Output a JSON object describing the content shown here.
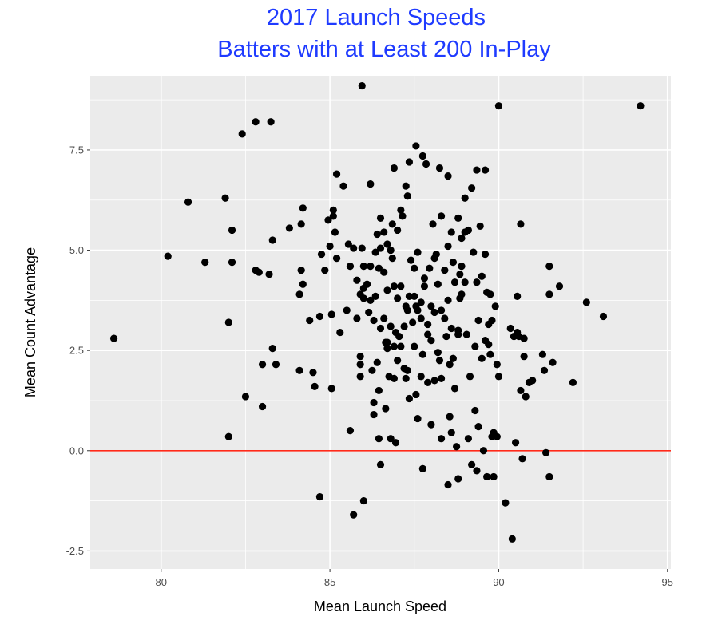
{
  "chart_data": {
    "type": "scatter",
    "title": [
      "2017 Launch Speeds",
      "Batters with at Least 200 In-Play"
    ],
    "xlabel": "Mean Launch Speed",
    "ylabel": "Mean Count Advantage",
    "xlim": [
      77.9,
      95.1
    ],
    "ylim": [
      -2.95,
      9.35
    ],
    "xticks": [
      80,
      85,
      90,
      95
    ],
    "yticks": [
      -2.5,
      0.0,
      2.5,
      5.0,
      7.5
    ],
    "xtick_labels": [
      "80",
      "85",
      "90",
      "95"
    ],
    "ytick_labels": [
      "-2.5",
      "0.0",
      "2.5",
      "5.0",
      "7.5"
    ],
    "grid": true,
    "hline": {
      "y": 0,
      "color": "#ff2a1a"
    },
    "colors": {
      "panel": "#ebebeb",
      "grid": "#ffffff",
      "points": "#000000",
      "title": "#1f3bff"
    },
    "points": [
      [
        78.6,
        2.8
      ],
      [
        80.2,
        4.85
      ],
      [
        80.8,
        6.2
      ],
      [
        81.3,
        4.7
      ],
      [
        81.9,
        6.3
      ],
      [
        82.0,
        3.2
      ],
      [
        82.0,
        0.35
      ],
      [
        82.1,
        5.5
      ],
      [
        82.1,
        4.7
      ],
      [
        82.4,
        7.9
      ],
      [
        82.5,
        1.35
      ],
      [
        82.8,
        4.5
      ],
      [
        82.8,
        8.2
      ],
      [
        82.9,
        4.45
      ],
      [
        83.0,
        2.15
      ],
      [
        83.0,
        1.1
      ],
      [
        83.2,
        4.4
      ],
      [
        83.25,
        8.2
      ],
      [
        83.3,
        5.25
      ],
      [
        83.3,
        2.55
      ],
      [
        83.4,
        2.15
      ],
      [
        83.8,
        5.55
      ],
      [
        84.1,
        3.9
      ],
      [
        84.1,
        2.0
      ],
      [
        84.15,
        5.65
      ],
      [
        84.15,
        4.5
      ],
      [
        84.2,
        6.05
      ],
      [
        84.2,
        4.15
      ],
      [
        84.4,
        3.25
      ],
      [
        84.5,
        1.95
      ],
      [
        84.55,
        1.6
      ],
      [
        84.7,
        3.35
      ],
      [
        84.7,
        -1.15
      ],
      [
        84.75,
        4.9
      ],
      [
        84.85,
        4.5
      ],
      [
        84.95,
        5.75
      ],
      [
        85.0,
        5.1
      ],
      [
        85.05,
        3.4
      ],
      [
        85.05,
        1.55
      ],
      [
        85.1,
        6.0
      ],
      [
        85.1,
        5.85
      ],
      [
        85.15,
        5.45
      ],
      [
        85.2,
        6.9
      ],
      [
        85.2,
        4.8
      ],
      [
        85.3,
        2.95
      ],
      [
        85.4,
        6.6
      ],
      [
        85.5,
        3.5
      ],
      [
        85.55,
        5.15
      ],
      [
        85.6,
        4.6
      ],
      [
        85.6,
        0.5
      ],
      [
        85.7,
        5.05
      ],
      [
        85.7,
        -1.6
      ],
      [
        85.8,
        4.25
      ],
      [
        85.8,
        3.3
      ],
      [
        85.9,
        2.35
      ],
      [
        85.9,
        2.15
      ],
      [
        85.9,
        1.85
      ],
      [
        85.9,
        3.9
      ],
      [
        85.95,
        9.1
      ],
      [
        85.95,
        5.05
      ],
      [
        86.0,
        4.6
      ],
      [
        86.0,
        3.8
      ],
      [
        86.0,
        4.05
      ],
      [
        86.0,
        -1.25
      ],
      [
        86.1,
        4.15
      ],
      [
        86.15,
        3.45
      ],
      [
        86.2,
        6.65
      ],
      [
        86.2,
        4.6
      ],
      [
        86.2,
        3.75
      ],
      [
        86.25,
        2.0
      ],
      [
        86.3,
        3.25
      ],
      [
        86.3,
        1.2
      ],
      [
        86.3,
        0.9
      ],
      [
        86.35,
        4.95
      ],
      [
        86.35,
        3.85
      ],
      [
        86.4,
        5.4
      ],
      [
        86.4,
        2.2
      ],
      [
        86.45,
        4.55
      ],
      [
        86.45,
        1.5
      ],
      [
        86.45,
        0.3
      ],
      [
        86.5,
        5.8
      ],
      [
        86.5,
        5.05
      ],
      [
        86.5,
        3.05
      ],
      [
        86.5,
        -0.35
      ],
      [
        86.6,
        5.45
      ],
      [
        86.6,
        4.45
      ],
      [
        86.6,
        3.3
      ],
      [
        86.65,
        2.7
      ],
      [
        86.65,
        1.05
      ],
      [
        86.7,
        5.15
      ],
      [
        86.7,
        4.0
      ],
      [
        86.7,
        2.7
      ],
      [
        86.7,
        2.55
      ],
      [
        86.75,
        1.85
      ],
      [
        86.8,
        5.0
      ],
      [
        86.8,
        3.1
      ],
      [
        86.8,
        0.3
      ],
      [
        86.85,
        5.65
      ],
      [
        86.85,
        4.8
      ],
      [
        86.9,
        7.05
      ],
      [
        86.9,
        4.1
      ],
      [
        86.9,
        2.6
      ],
      [
        86.9,
        1.8
      ],
      [
        86.95,
        2.95
      ],
      [
        86.95,
        0.2
      ],
      [
        87.0,
        5.5
      ],
      [
        87.0,
        3.8
      ],
      [
        87.0,
        2.25
      ],
      [
        87.05,
        2.85
      ],
      [
        87.1,
        6.0
      ],
      [
        87.1,
        4.1
      ],
      [
        87.1,
        2.6
      ],
      [
        87.15,
        5.85
      ],
      [
        87.2,
        3.1
      ],
      [
        87.2,
        2.05
      ],
      [
        87.25,
        6.6
      ],
      [
        87.25,
        3.6
      ],
      [
        87.25,
        1.8
      ],
      [
        87.3,
        6.35
      ],
      [
        87.3,
        3.5
      ],
      [
        87.3,
        2.0
      ],
      [
        87.35,
        7.2
      ],
      [
        87.35,
        3.85
      ],
      [
        87.35,
        1.3
      ],
      [
        87.4,
        4.75
      ],
      [
        87.45,
        3.2
      ],
      [
        87.5,
        4.55
      ],
      [
        87.5,
        3.85
      ],
      [
        87.5,
        2.6
      ],
      [
        87.55,
        7.6
      ],
      [
        87.55,
        3.6
      ],
      [
        87.55,
        1.4
      ],
      [
        87.6,
        4.95
      ],
      [
        87.6,
        3.5
      ],
      [
        87.6,
        0.8
      ],
      [
        87.7,
        3.7
      ],
      [
        87.7,
        3.3
      ],
      [
        87.7,
        1.85
      ],
      [
        87.75,
        7.35
      ],
      [
        87.75,
        2.4
      ],
      [
        87.75,
        -0.45
      ],
      [
        87.8,
        4.3
      ],
      [
        87.8,
        4.1
      ],
      [
        87.85,
        7.15
      ],
      [
        87.9,
        3.15
      ],
      [
        87.9,
        2.9
      ],
      [
        87.9,
        1.7
      ],
      [
        87.95,
        4.55
      ],
      [
        88.0,
        3.6
      ],
      [
        88.0,
        2.75
      ],
      [
        88.0,
        0.65
      ],
      [
        88.05,
        5.65
      ],
      [
        88.1,
        4.8
      ],
      [
        88.1,
        3.45
      ],
      [
        88.1,
        1.75
      ],
      [
        88.15,
        4.9
      ],
      [
        88.2,
        4.15
      ],
      [
        88.2,
        2.45
      ],
      [
        88.25,
        7.05
      ],
      [
        88.25,
        2.25
      ],
      [
        88.3,
        5.85
      ],
      [
        88.3,
        3.5
      ],
      [
        88.3,
        1.8
      ],
      [
        88.3,
        0.3
      ],
      [
        88.4,
        4.5
      ],
      [
        88.4,
        3.3
      ],
      [
        88.45,
        2.85
      ],
      [
        88.5,
        6.85
      ],
      [
        88.5,
        5.1
      ],
      [
        88.5,
        3.75
      ],
      [
        88.5,
        -0.85
      ],
      [
        88.55,
        2.15
      ],
      [
        88.55,
        0.85
      ],
      [
        88.6,
        5.45
      ],
      [
        88.6,
        3.05
      ],
      [
        88.6,
        0.45
      ],
      [
        88.65,
        4.7
      ],
      [
        88.65,
        2.3
      ],
      [
        88.7,
        4.2
      ],
      [
        88.7,
        1.55
      ],
      [
        88.75,
        0.1
      ],
      [
        88.8,
        5.8
      ],
      [
        88.8,
        3.0
      ],
      [
        88.8,
        2.9
      ],
      [
        88.8,
        -0.7
      ],
      [
        88.85,
        4.4
      ],
      [
        88.85,
        3.8
      ],
      [
        88.9,
        5.3
      ],
      [
        88.9,
        4.6
      ],
      [
        88.9,
        3.9
      ],
      [
        89.0,
        6.3
      ],
      [
        89.0,
        5.45
      ],
      [
        89.0,
        4.2
      ],
      [
        89.05,
        2.9
      ],
      [
        89.1,
        5.5
      ],
      [
        89.1,
        0.3
      ],
      [
        89.15,
        1.85
      ],
      [
        89.2,
        6.55
      ],
      [
        89.2,
        -0.35
      ],
      [
        89.25,
        4.95
      ],
      [
        89.3,
        2.6
      ],
      [
        89.3,
        1.0
      ],
      [
        89.35,
        7.0
      ],
      [
        89.35,
        4.2
      ],
      [
        89.35,
        -0.5
      ],
      [
        89.4,
        3.25
      ],
      [
        89.4,
        0.6
      ],
      [
        89.45,
        5.6
      ],
      [
        89.5,
        4.35
      ],
      [
        89.5,
        2.3
      ],
      [
        89.55,
        0.0
      ],
      [
        89.6,
        7.0
      ],
      [
        89.6,
        4.9
      ],
      [
        89.6,
        2.75
      ],
      [
        89.65,
        3.95
      ],
      [
        89.65,
        -0.65
      ],
      [
        89.7,
        3.15
      ],
      [
        89.7,
        2.65
      ],
      [
        89.75,
        3.9
      ],
      [
        89.75,
        2.4
      ],
      [
        89.8,
        3.25
      ],
      [
        89.8,
        0.35
      ],
      [
        89.85,
        0.45
      ],
      [
        89.85,
        -0.65
      ],
      [
        89.9,
        3.6
      ],
      [
        89.95,
        2.15
      ],
      [
        89.95,
        0.35
      ],
      [
        90.0,
        8.6
      ],
      [
        90.0,
        1.85
      ],
      [
        90.2,
        -1.3
      ],
      [
        90.35,
        3.05
      ],
      [
        90.4,
        -2.2
      ],
      [
        90.45,
        2.85
      ],
      [
        90.5,
        0.2
      ],
      [
        90.55,
        2.95
      ],
      [
        90.55,
        3.85
      ],
      [
        90.6,
        2.85
      ],
      [
        90.65,
        5.65
      ],
      [
        90.65,
        1.5
      ],
      [
        90.7,
        -0.2
      ],
      [
        90.75,
        2.8
      ],
      [
        90.75,
        2.35
      ],
      [
        90.8,
        1.35
      ],
      [
        90.9,
        1.7
      ],
      [
        91.0,
        1.75
      ],
      [
        91.3,
        2.4
      ],
      [
        91.35,
        2.0
      ],
      [
        91.4,
        -0.05
      ],
      [
        91.5,
        4.6
      ],
      [
        91.5,
        3.9
      ],
      [
        91.5,
        -0.65
      ],
      [
        91.6,
        2.2
      ],
      [
        91.8,
        4.1
      ],
      [
        92.2,
        1.7
      ],
      [
        92.6,
        3.7
      ],
      [
        93.1,
        3.35
      ],
      [
        94.2,
        8.6
      ]
    ]
  }
}
